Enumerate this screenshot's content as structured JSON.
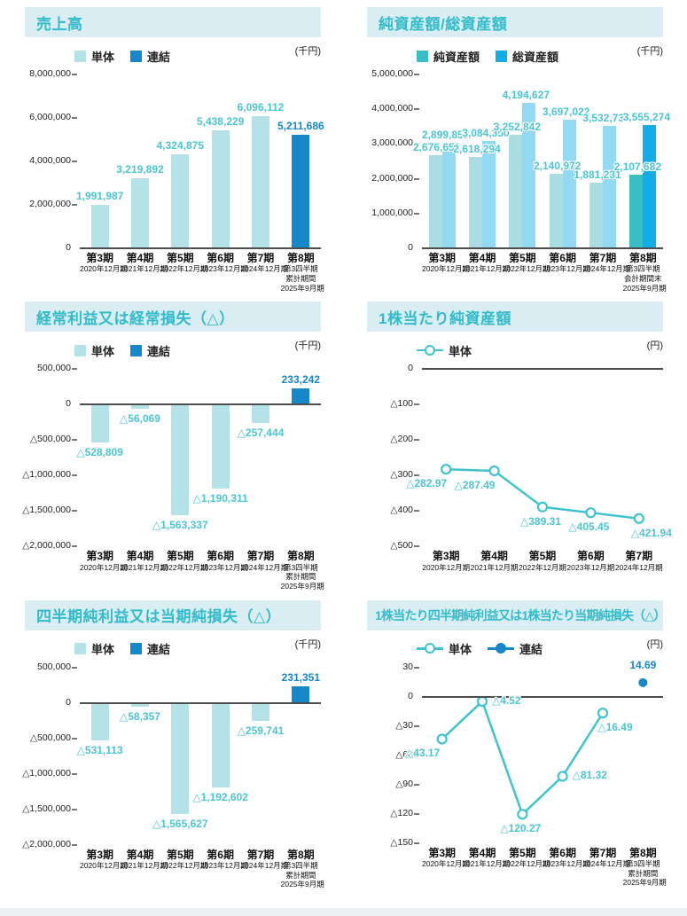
{
  "page": {
    "background": "#ffffff"
  },
  "colors": {
    "title_text": "#32bcca",
    "title_bg": "#d9edf3",
    "axis_text": "#222222",
    "axis_line": "#4d4d4d",
    "pale_teal": "#b5e2e6",
    "teal": "#39bec3",
    "teal_label": "#4cc5d3",
    "blue": "#1687c9",
    "pale_cyan": "#92d9f3",
    "cyan": "#12ade8",
    "line_teal": "#3ec3cf"
  },
  "chart_data": [
    {
      "type": "bar",
      "title": "売上高",
      "unit": "(千円)",
      "ylim": [
        8000000,
        0
      ],
      "yticks": [
        {
          "v": 8000000,
          "label": "8,000,000"
        },
        {
          "v": 6000000,
          "label": "6,000,000"
        },
        {
          "v": 4000000,
          "label": "4,000,000"
        },
        {
          "v": 2000000,
          "label": "2,000,000"
        },
        {
          "v": 0,
          "label": "0"
        }
      ],
      "legend": [
        {
          "label": "単体",
          "marker": "square",
          "color": "#b5e2e6"
        },
        {
          "label": "連結",
          "marker": "square",
          "color": "#1687c9"
        }
      ],
      "categories": [
        {
          "title": "第3期",
          "sub": [
            "2020年12月期"
          ]
        },
        {
          "title": "第4期",
          "sub": [
            "2021年12月期"
          ]
        },
        {
          "title": "第5期",
          "sub": [
            "2022年12月期"
          ]
        },
        {
          "title": "第6期",
          "sub": [
            "2023年12月期"
          ]
        },
        {
          "title": "第7期",
          "sub": [
            "2024年12月期"
          ]
        },
        {
          "title": "第8期",
          "sub": [
            "第3四半期",
            "累計期間",
            "2025年9月期"
          ]
        }
      ],
      "points": [
        {
          "v": 1991987,
          "label": "1,991,987",
          "color": "#b5e2e6",
          "label_color": "#4cc5d3"
        },
        {
          "v": 3219892,
          "label": "3,219,892",
          "color": "#b5e2e6",
          "label_color": "#4cc5d3"
        },
        {
          "v": 4324875,
          "label": "4,324,875",
          "color": "#b5e2e6",
          "label_color": "#4cc5d3"
        },
        {
          "v": 5438229,
          "label": "5,438,229",
          "color": "#b5e2e6",
          "label_color": "#4cc5d3"
        },
        {
          "v": 6096112,
          "label": "6,096,112",
          "color": "#b5e2e6",
          "label_color": "#4cc5d3"
        },
        {
          "v": 5211686,
          "label": "5,211,686",
          "color": "#1687c9",
          "label_color": "#1687c9"
        }
      ]
    },
    {
      "type": "grouped-bar",
      "title": "純資産額/総資産額",
      "unit": "(千円)",
      "ylim": [
        5000000,
        0
      ],
      "yticks": [
        {
          "v": 5000000,
          "label": "5,000,000"
        },
        {
          "v": 4000000,
          "label": "4,000,000"
        },
        {
          "v": 3000000,
          "label": "3,000,000"
        },
        {
          "v": 2000000,
          "label": "2,000,000"
        },
        {
          "v": 1000000,
          "label": "1,000,000"
        },
        {
          "v": 0,
          "label": "0"
        }
      ],
      "legend": [
        {
          "label": "純資産額",
          "marker": "square",
          "color": "#39bec3"
        },
        {
          "label": "総資産額",
          "marker": "square",
          "color": "#12ade8"
        }
      ],
      "categories": [
        {
          "title": "第3期",
          "sub": [
            "2020年12月期"
          ]
        },
        {
          "title": "第4期",
          "sub": [
            "2021年12月期"
          ]
        },
        {
          "title": "第5期",
          "sub": [
            "2022年12月期"
          ]
        },
        {
          "title": "第6期",
          "sub": [
            "2023年12月期"
          ]
        },
        {
          "title": "第7期",
          "sub": [
            "2024年12月期"
          ]
        },
        {
          "title": "第8期",
          "sub": [
            "第3四半期",
            "会計期間末",
            "2025年9月期"
          ]
        }
      ],
      "series": [
        {
          "name": "純資産額",
          "points": [
            {
              "v": 2676651,
              "label": "2,676,651",
              "color": "#a9dde1",
              "label_color": "#4cc5d3"
            },
            {
              "v": 2618294,
              "label": "2,618,294",
              "color": "#a9dde1",
              "label_color": "#4cc5d3"
            },
            {
              "v": 3252842,
              "label": "3,252,842",
              "color": "#a9dde1",
              "label_color": "#4cc5d3"
            },
            {
              "v": 2140972,
              "label": "2,140,972",
              "color": "#a9dde1",
              "label_color": "#4cc5d3"
            },
            {
              "v": 1881231,
              "label": "1,881,231",
              "color": "#a9dde1",
              "label_color": "#4cc5d3"
            },
            {
              "v": 2107682,
              "label": "2,107,682",
              "color": "#39bec3",
              "label_color": "#4cc5d3"
            }
          ]
        },
        {
          "name": "総資産額",
          "points": [
            {
              "v": 2899857,
              "label": "2,899,857",
              "color": "#92d9f3",
              "label_color": "#4cc5d3"
            },
            {
              "v": 3084350,
              "label": "3,084,350",
              "color": "#92d9f3",
              "label_color": "#4cc5d3"
            },
            {
              "v": 4194627,
              "label": "4,194,627",
              "color": "#92d9f3",
              "label_color": "#4cc5d3"
            },
            {
              "v": 3697022,
              "label": "3,697,022",
              "color": "#92d9f3",
              "label_color": "#4cc5d3"
            },
            {
              "v": 3532737,
              "label": "3,532,737",
              "color": "#92d9f3",
              "label_color": "#4cc5d3"
            },
            {
              "v": 3555274,
              "label": "3,555,274",
              "color": "#12ade8",
              "label_color": "#4cc5d3"
            }
          ]
        }
      ]
    },
    {
      "type": "bar",
      "title": "経常利益又は経常損失（△）",
      "unit": "(千円)",
      "ylim": [
        500000,
        -2000000
      ],
      "yticks": [
        {
          "v": 500000,
          "label": "500,000"
        },
        {
          "v": 0,
          "label": "0"
        },
        {
          "v": -500000,
          "label": "△500,000"
        },
        {
          "v": -1000000,
          "label": "△1,000,000"
        },
        {
          "v": -1500000,
          "label": "△1,500,000"
        },
        {
          "v": -2000000,
          "label": "△2,000,000"
        }
      ],
      "legend": [
        {
          "label": "単体",
          "marker": "square",
          "color": "#b5e2e6"
        },
        {
          "label": "連結",
          "marker": "square",
          "color": "#1687c9"
        }
      ],
      "categories": [
        {
          "title": "第3期",
          "sub": [
            "2020年12月期"
          ]
        },
        {
          "title": "第4期",
          "sub": [
            "2021年12月期"
          ]
        },
        {
          "title": "第5期",
          "sub": [
            "2022年12月期"
          ]
        },
        {
          "title": "第6期",
          "sub": [
            "2023年12月期"
          ]
        },
        {
          "title": "第7期",
          "sub": [
            "2024年12月期"
          ]
        },
        {
          "title": "第8期",
          "sub": [
            "第3四半期",
            "累計期間",
            "2025年9月期"
          ]
        }
      ],
      "points": [
        {
          "v": -528809,
          "label": "△528,809",
          "color": "#b5e2e6",
          "label_color": "#4cc5d3"
        },
        {
          "v": -56069,
          "label": "△56,069",
          "color": "#b5e2e6",
          "label_color": "#4cc5d3"
        },
        {
          "v": -1563337,
          "label": "△1,563,337",
          "color": "#b5e2e6",
          "label_color": "#4cc5d3"
        },
        {
          "v": -1190311,
          "label": "△1,190,311",
          "color": "#b5e2e6",
          "label_color": "#4cc5d3"
        },
        {
          "v": -257444,
          "label": "△257,444",
          "color": "#b5e2e6",
          "label_color": "#4cc5d3"
        },
        {
          "v": 233242,
          "label": "233,242",
          "color": "#1687c9",
          "label_color": "#1687c9"
        }
      ]
    },
    {
      "type": "line",
      "title": "1株当たり純資産額",
      "unit": "(円)",
      "ylim": [
        0,
        -500
      ],
      "yticks": [
        {
          "v": 0,
          "label": "0"
        },
        {
          "v": -100,
          "label": "△100"
        },
        {
          "v": -200,
          "label": "△200"
        },
        {
          "v": -300,
          "label": "△300"
        },
        {
          "v": -400,
          "label": "△400"
        },
        {
          "v": -500,
          "label": "△500"
        }
      ],
      "legend": [
        {
          "label": "単体",
          "marker": "line-open",
          "color": "#3ec3cf"
        }
      ],
      "categories": [
        {
          "title": "第3期",
          "sub": [
            "2020年12月期"
          ]
        },
        {
          "title": "第4期",
          "sub": [
            "2021年12月期"
          ]
        },
        {
          "title": "第5期",
          "sub": [
            "2022年12月期"
          ]
        },
        {
          "title": "第6期",
          "sub": [
            "2023年12月期"
          ]
        },
        {
          "title": "第7期",
          "sub": [
            "2024年12月期"
          ]
        }
      ],
      "series": [
        {
          "name": "単体",
          "color": "#3ec3cf",
          "marker": "open",
          "label_color": "#4cc5d3",
          "points": [
            {
              "i": 0,
              "v": -282.97,
              "label": "△282.97",
              "pos": "below-left"
            },
            {
              "i": 1,
              "v": -287.49,
              "label": "△287.49",
              "pos": "below-left"
            },
            {
              "i": 2,
              "v": -389.31,
              "label": "△389.31",
              "pos": "below"
            },
            {
              "i": 3,
              "v": -405.45,
              "label": "△405.45",
              "pos": "below"
            },
            {
              "i": 4,
              "v": -421.94,
              "label": "△421.94",
              "pos": "below-right"
            }
          ]
        }
      ]
    },
    {
      "type": "bar",
      "title": "四半期純利益又は当期純損失（△）",
      "unit": "(千円)",
      "ylim": [
        500000,
        -2000000
      ],
      "yticks": [
        {
          "v": 500000,
          "label": "500,000"
        },
        {
          "v": 0,
          "label": "0"
        },
        {
          "v": -500000,
          "label": "△500,000"
        },
        {
          "v": -1000000,
          "label": "△1,000,000"
        },
        {
          "v": -1500000,
          "label": "△1,500,000"
        },
        {
          "v": -2000000,
          "label": "△2,000,000"
        }
      ],
      "legend": [
        {
          "label": "単体",
          "marker": "square",
          "color": "#b5e2e6"
        },
        {
          "label": "連結",
          "marker": "square",
          "color": "#1687c9"
        }
      ],
      "categories": [
        {
          "title": "第3期",
          "sub": [
            "2020年12月期"
          ]
        },
        {
          "title": "第4期",
          "sub": [
            "2021年12月期"
          ]
        },
        {
          "title": "第5期",
          "sub": [
            "2022年12月期"
          ]
        },
        {
          "title": "第6期",
          "sub": [
            "2023年12月期"
          ]
        },
        {
          "title": "第7期",
          "sub": [
            "2024年12月期"
          ]
        },
        {
          "title": "第8期",
          "sub": [
            "第3四半期",
            "累計期間",
            "2025年9月期"
          ]
        }
      ],
      "points": [
        {
          "v": -531113,
          "label": "△531,113",
          "color": "#b5e2e6",
          "label_color": "#4cc5d3"
        },
        {
          "v": -58357,
          "label": "△58,357",
          "color": "#b5e2e6",
          "label_color": "#4cc5d3"
        },
        {
          "v": -1565627,
          "label": "△1,565,627",
          "color": "#b5e2e6",
          "label_color": "#4cc5d3"
        },
        {
          "v": -1192602,
          "label": "△1,192,602",
          "color": "#b5e2e6",
          "label_color": "#4cc5d3"
        },
        {
          "v": -259741,
          "label": "△259,741",
          "color": "#b5e2e6",
          "label_color": "#4cc5d3"
        },
        {
          "v": 231351,
          "label": "231,351",
          "color": "#1687c9",
          "label_color": "#1687c9"
        }
      ]
    },
    {
      "type": "line",
      "title": "1株当たり四半期純利益又は1株当たり当期純損失（△）",
      "unit": "(円)",
      "ylim": [
        30,
        -150
      ],
      "yticks": [
        {
          "v": 30,
          "label": "30"
        },
        {
          "v": 0,
          "label": "0"
        },
        {
          "v": -30,
          "label": "△30"
        },
        {
          "v": -60,
          "label": "△60"
        },
        {
          "v": -90,
          "label": "△90"
        },
        {
          "v": -120,
          "label": "△120"
        },
        {
          "v": -150,
          "label": "△150"
        }
      ],
      "legend": [
        {
          "label": "単体",
          "marker": "line-open",
          "color": "#3ec3cf"
        },
        {
          "label": "連結",
          "marker": "line-filled",
          "color": "#1687c9"
        }
      ],
      "categories": [
        {
          "title": "第3期",
          "sub": [
            "2020年12月期"
          ]
        },
        {
          "title": "第4期",
          "sub": [
            "2021年12月期"
          ]
        },
        {
          "title": "第5期",
          "sub": [
            "2022年12月期"
          ]
        },
        {
          "title": "第6期",
          "sub": [
            "2023年12月期"
          ]
        },
        {
          "title": "第7期",
          "sub": [
            "2024年12月期"
          ]
        },
        {
          "title": "第8期",
          "sub": [
            "第3四半期",
            "累計期間",
            "2025年9月期"
          ]
        }
      ],
      "series": [
        {
          "name": "単体",
          "color": "#3ec3cf",
          "marker": "open",
          "label_color": "#4cc5d3",
          "points": [
            {
              "i": 0,
              "v": -43.17,
              "label": "△43.17",
              "pos": "below-left"
            },
            {
              "i": 1,
              "v": -4.52,
              "label": "△4.52",
              "pos": "right"
            },
            {
              "i": 2,
              "v": -120.27,
              "label": "△120.27",
              "pos": "below"
            },
            {
              "i": 3,
              "v": -81.32,
              "label": "△81.32",
              "pos": "right"
            },
            {
              "i": 4,
              "v": -16.49,
              "label": "△16.49",
              "pos": "below-right"
            }
          ]
        },
        {
          "name": "連結",
          "color": "#1687c9",
          "marker": "filled",
          "label_color": "#1687c9",
          "points": [
            {
              "i": 5,
              "v": 14.69,
              "label": "14.69",
              "pos": "above"
            }
          ]
        }
      ]
    }
  ]
}
